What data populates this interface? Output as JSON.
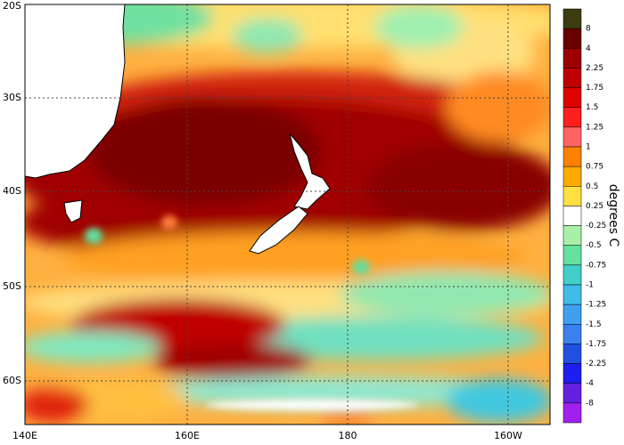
{
  "map": {
    "lat_labels": [
      "20S",
      "30S",
      "40S",
      "50S",
      "60S"
    ],
    "lon_labels": [
      "140E",
      "160E",
      "180",
      "160W"
    ],
    "colorbar": {
      "title": "degrees C",
      "labels": [
        "8",
        "4",
        "2.25",
        "1.75",
        "1.5",
        "1.25",
        "1",
        "0.75",
        "0.5",
        "0.25",
        "-0.25",
        "-0.5",
        "-0.75",
        "-1",
        "-1.25",
        "-1.5",
        "-1.75",
        "-2.25",
        "-4",
        "-8"
      ],
      "colors": [
        "#3c3c10",
        "#6a0000",
        "#9c0000",
        "#c00000",
        "#e00000",
        "#ff1e1e",
        "#ff6464",
        "#ff8000",
        "#ffaa00",
        "#ffe040",
        "#ffffff",
        "#a8f0a8",
        "#64e0a0",
        "#40d0c8",
        "#40bce8",
        "#40a0f0",
        "#3c80f0",
        "#2050e0",
        "#1e1ef0",
        "#6420e0",
        "#a020f0"
      ]
    }
  }
}
